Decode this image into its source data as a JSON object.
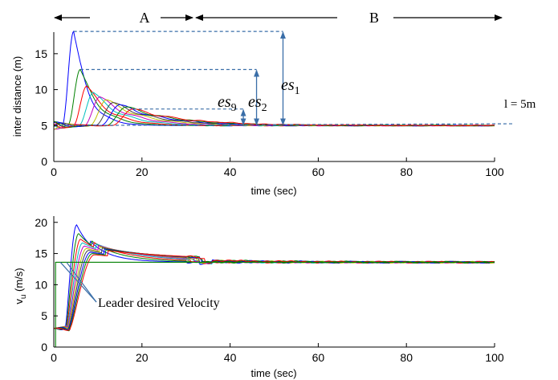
{
  "chart_data": [
    {
      "type": "line",
      "xlabel": "time (sec)",
      "ylabel": "inter distance (m)",
      "xlim": [
        0,
        100
      ],
      "ylim": [
        0,
        18
      ],
      "xticks": [
        "0",
        "20",
        "40",
        "60",
        "80",
        "100"
      ],
      "yticks": [
        "0",
        "5",
        "10",
        "15"
      ],
      "series_colors": [
        "#0000ff",
        "#008000",
        "#ff0000",
        "#00bfbf",
        "#bf00bf",
        "#bfbf00",
        "#404040",
        "#0000ff",
        "#008000",
        "#ff0000"
      ],
      "series": [
        {
          "peak": 18.1,
          "t_peak": 4.5
        },
        {
          "peak": 12.8,
          "t_peak": 6.0
        },
        {
          "peak": 10.5,
          "t_peak": 7.5
        },
        {
          "peak": 9.6,
          "t_peak": 9.0
        },
        {
          "peak": 9.0,
          "t_peak": 10.5
        },
        {
          "peak": 8.6,
          "t_peak": 12.0
        },
        {
          "peak": 8.2,
          "t_peak": 13.5
        },
        {
          "peak": 7.9,
          "t_peak": 15.0
        },
        {
          "peak": 7.6,
          "t_peak": 16.5
        },
        {
          "peak": 7.3,
          "t_peak": 18.0
        }
      ],
      "reference_line": 5,
      "annotations": {
        "phase_a": "A",
        "phase_b": "B",
        "phase_boundary": 32,
        "es1": {
          "base": "es",
          "sub": "1",
          "value": 18.1,
          "t": 52
        },
        "es2": {
          "base": "es",
          "sub": "2",
          "value": 12.8,
          "t": 46
        },
        "es9": {
          "base": "es",
          "sub": "9",
          "value": 7.3,
          "t": 43
        },
        "l_label": "l = 5m"
      }
    },
    {
      "type": "line",
      "xlabel": "time (sec)",
      "ylabel_main": "v",
      "ylabel_sub": "u",
      "ylabel_unit": " (m/s)",
      "xlim": [
        0,
        100
      ],
      "ylim": [
        0,
        21
      ],
      "xticks": [
        "0",
        "20",
        "40",
        "60",
        "80",
        "100"
      ],
      "yticks": [
        "0",
        "5",
        "10",
        "15",
        "20"
      ],
      "leader_desired_velocity": 13.6,
      "initial_velocity": 3,
      "peaks": [
        19.6,
        18.2,
        17.3,
        16.7,
        16.2,
        15.8,
        15.5,
        15.2,
        15.0,
        14.8
      ],
      "annotation": {
        "text": "Leader desired Velocity",
        "t": 1.5,
        "value": 13.6
      }
    }
  ]
}
